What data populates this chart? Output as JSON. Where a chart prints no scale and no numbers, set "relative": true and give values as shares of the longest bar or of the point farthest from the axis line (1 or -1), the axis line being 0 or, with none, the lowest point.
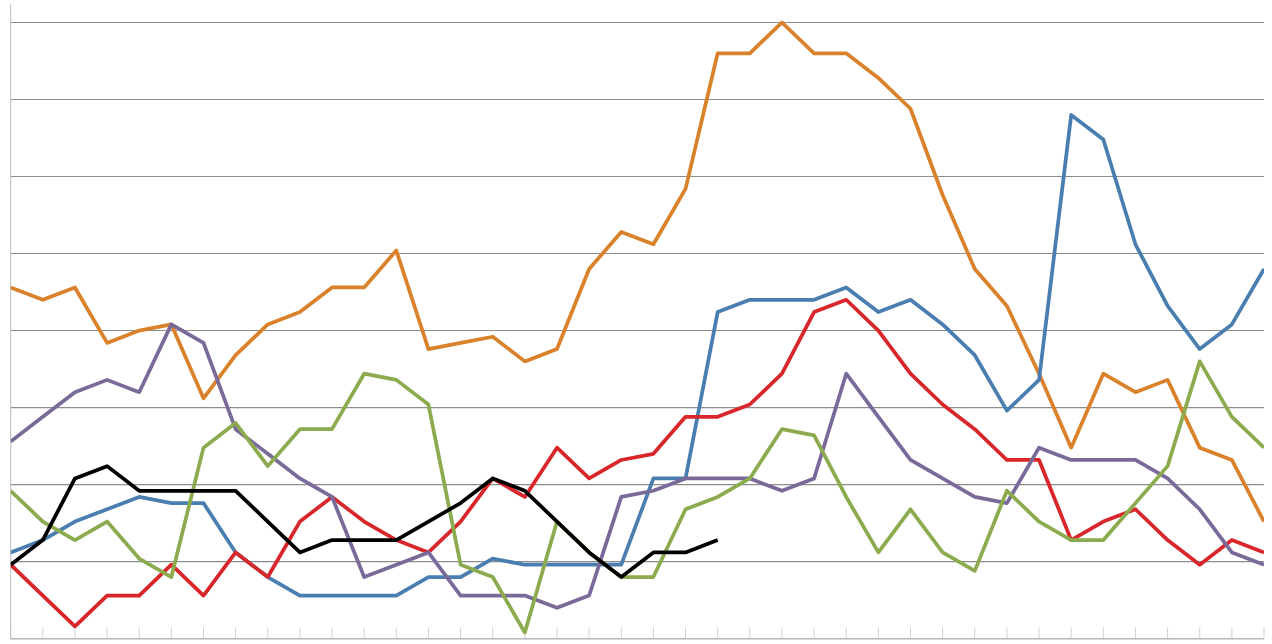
{
  "chart_data": {
    "type": "line",
    "relative": true,
    "grid": "y",
    "line_style": "solid",
    "marker": "none",
    "categories": [
      null,
      null,
      null,
      null,
      null,
      null,
      null,
      null,
      null,
      null,
      null,
      null,
      null,
      null,
      null,
      null,
      null,
      null,
      null,
      null,
      null,
      null,
      null,
      null,
      null,
      null,
      null,
      null,
      null,
      null,
      null,
      null,
      null,
      null,
      null,
      null,
      null,
      null,
      null,
      null
    ],
    "series": [
      {
        "color": "#d9822b",
        "values": [
          0.57,
          0.55,
          0.57,
          0.48,
          0.5,
          0.51,
          0.39,
          0.46,
          0.51,
          0.53,
          0.57,
          0.57,
          0.63,
          0.47,
          0.48,
          0.49,
          0.45,
          0.47,
          0.6,
          0.66,
          0.64,
          0.73,
          0.95,
          0.95,
          1,
          0.95,
          0.95,
          0.91,
          0.86,
          0.72,
          0.6,
          0.54,
          0.43,
          0.31,
          0.43,
          0.4,
          0.42,
          0.31,
          0.29,
          0.19
        ]
      },
      {
        "color": "#4a7eb0",
        "values": [
          0.14,
          0.16,
          0.19,
          0.21,
          0.23,
          0.22,
          0.22,
          0.14,
          0.1,
          0.07,
          0.07,
          0.07,
          0.07,
          0.1,
          0.1,
          0.13,
          0.12,
          0.12,
          0.12,
          0.12,
          0.26,
          0.26,
          0.53,
          0.55,
          0.55,
          0.55,
          0.57,
          0.53,
          0.55,
          0.51,
          0.46,
          0.37,
          0.42,
          0.85,
          0.81,
          0.64,
          0.54,
          0.47,
          0.51,
          0.6
        ]
      },
      {
        "color": "#d8262a",
        "values": [
          0.12,
          0.07,
          0.02,
          0.07,
          0.07,
          0.12,
          0.07,
          0.14,
          0.1,
          0.19,
          0.23,
          0.19,
          0.16,
          0.14,
          0.19,
          0.26,
          0.23,
          0.31,
          0.26,
          0.29,
          0.3,
          0.36,
          0.36,
          0.38,
          0.43,
          0.53,
          0.55,
          0.5,
          0.43,
          0.38,
          0.34,
          0.29,
          0.29,
          0.16,
          0.19,
          0.21,
          0.16,
          0.12,
          0.16,
          0.14
        ]
      },
      {
        "color": "#7a6a9a",
        "values": [
          0.32,
          0.36,
          0.4,
          0.42,
          0.4,
          0.51,
          0.48,
          0.34,
          0.3,
          0.26,
          0.23,
          0.1,
          0.12,
          0.14,
          0.07,
          0.07,
          0.07,
          0.05,
          0.07,
          0.23,
          0.24,
          0.26,
          0.26,
          0.26,
          0.24,
          0.26,
          0.43,
          0.36,
          0.29,
          0.26,
          0.23,
          0.22,
          0.31,
          0.29,
          0.29,
          0.29,
          0.26,
          0.21,
          0.14,
          0.12
        ]
      },
      {
        "color": "#8cab4e",
        "values": [
          0.24,
          0.19,
          0.16,
          0.19,
          0.13,
          0.1,
          0.31,
          0.35,
          0.28,
          0.34,
          0.34,
          0.43,
          0.42,
          0.38,
          0.12,
          0.1,
          0.01,
          0.19,
          0.14,
          0.1,
          0.1,
          0.21,
          0.23,
          0.26,
          0.34,
          0.33,
          0.23,
          0.14,
          0.21,
          0.14,
          0.11,
          0.24,
          0.19,
          0.16,
          0.16,
          0.22,
          0.28,
          0.45,
          0.36,
          0.31
        ]
      },
      {
        "color": "#000000",
        "values": [
          0.12,
          0.16,
          0.26,
          0.28,
          0.24,
          0.24,
          0.24,
          0.24,
          0.19,
          0.14,
          0.16,
          0.16,
          0.16,
          0.19,
          0.22,
          0.26,
          0.24,
          0.19,
          0.14,
          0.1,
          0.14,
          0.14,
          0.16,
          null,
          null,
          null,
          null,
          null,
          null,
          null,
          null,
          null,
          null,
          null,
          null,
          null,
          null,
          null,
          null,
          null
        ]
      }
    ]
  }
}
